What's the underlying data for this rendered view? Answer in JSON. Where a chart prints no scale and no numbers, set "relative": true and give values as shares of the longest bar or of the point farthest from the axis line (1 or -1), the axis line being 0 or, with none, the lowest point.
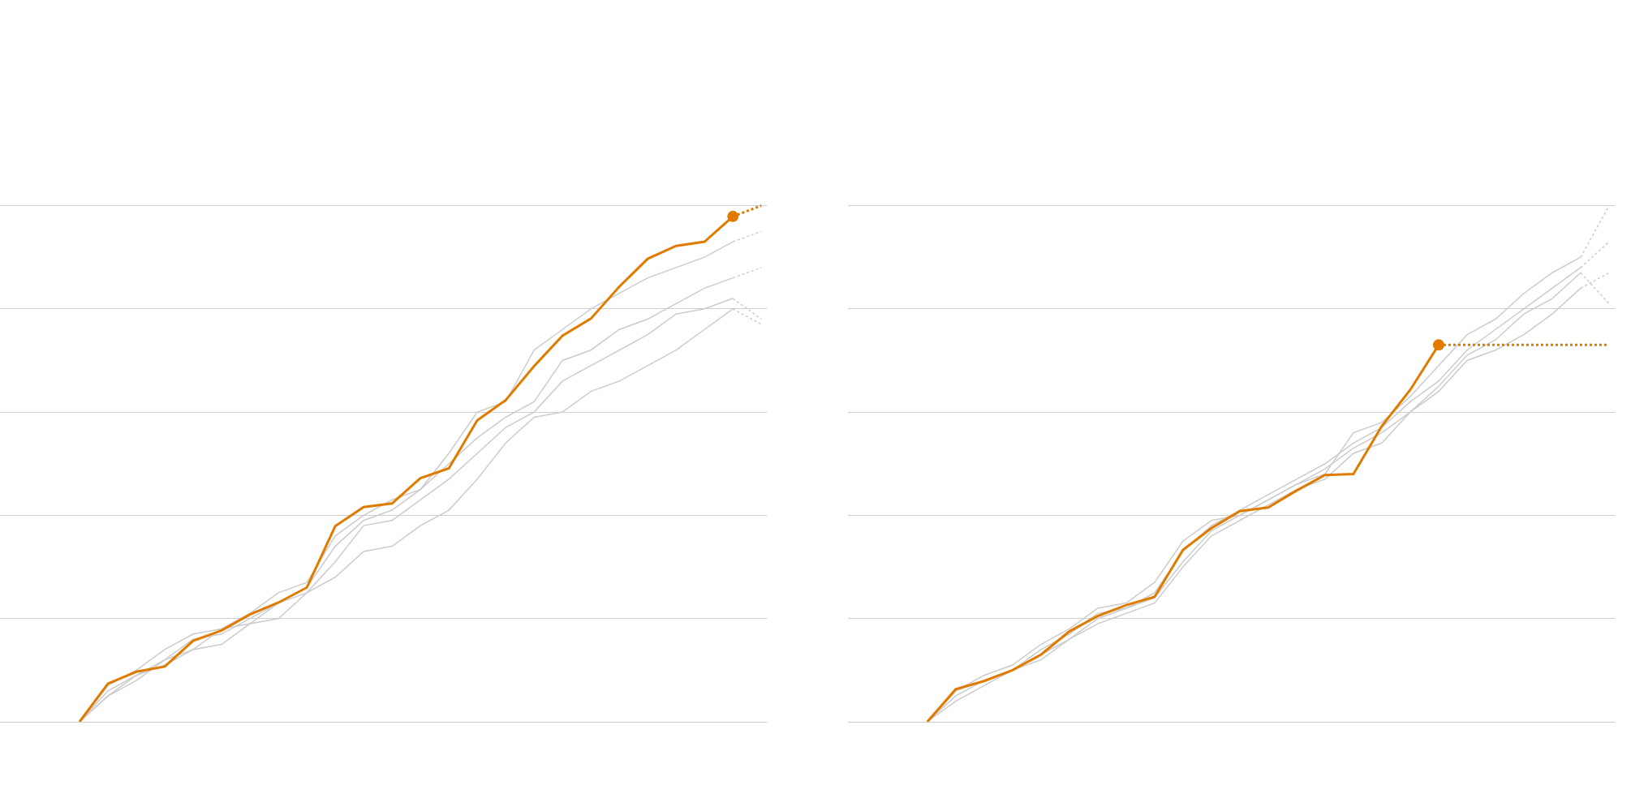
{
  "chart_data": [
    {
      "type": "line",
      "relative": true,
      "grid": "y",
      "legend": false,
      "categories": [
        null,
        null,
        null,
        null,
        null,
        null,
        null,
        null,
        null,
        null,
        null,
        null,
        null,
        null,
        null,
        null,
        null,
        null,
        null,
        null,
        null,
        null,
        null,
        null,
        null
      ],
      "series": [
        {
          "color": "#cccccc",
          "values": [
            0,
            0.07,
            0.1,
            0.14,
            0.17,
            0.18,
            0.21,
            0.25,
            0.27,
            0.36,
            0.4,
            0.43,
            0.45,
            0.52,
            0.6,
            0.62,
            0.72,
            0.76,
            0.8,
            0.83,
            0.86,
            0.88,
            0.9,
            0.93,
            null
          ]
        },
        {
          "color": "#cccccc",
          "values": [
            0,
            0.06,
            0.09,
            0.12,
            0.16,
            0.17,
            0.2,
            0.23,
            0.26,
            0.34,
            0.39,
            0.41,
            0.45,
            0.5,
            0.55,
            0.59,
            0.62,
            0.7,
            0.72,
            0.76,
            0.78,
            0.81,
            0.84,
            0.86,
            null
          ]
        },
        {
          "color": "#cccccc",
          "values": [
            0,
            0.05,
            0.08,
            0.12,
            0.14,
            0.18,
            0.19,
            0.23,
            0.25,
            0.31,
            0.38,
            0.39,
            0.43,
            0.47,
            0.52,
            0.57,
            0.6,
            0.66,
            0.69,
            0.72,
            0.75,
            0.79,
            0.8,
            0.82,
            null
          ]
        },
        {
          "color": "#cccccc",
          "values": [
            0,
            0.05,
            0.09,
            0.11,
            0.14,
            0.15,
            0.19,
            0.2,
            0.25,
            0.28,
            0.33,
            0.34,
            0.38,
            0.41,
            0.47,
            0.54,
            0.59,
            0.6,
            0.64,
            0.66,
            0.69,
            0.72,
            0.76,
            0.8,
            null
          ]
        },
        {
          "color": "#cccccc",
          "line_style": "dotted",
          "values": [
            null,
            null,
            null,
            null,
            null,
            null,
            null,
            null,
            null,
            null,
            null,
            null,
            null,
            null,
            null,
            null,
            null,
            null,
            null,
            null,
            null,
            null,
            null,
            0.93,
            0.95
          ]
        },
        {
          "color": "#cccccc",
          "line_style": "dotted",
          "values": [
            null,
            null,
            null,
            null,
            null,
            null,
            null,
            null,
            null,
            null,
            null,
            null,
            null,
            null,
            null,
            null,
            null,
            null,
            null,
            null,
            null,
            null,
            null,
            0.86,
            0.88
          ]
        },
        {
          "color": "#cccccc",
          "line_style": "dotted",
          "values": [
            null,
            null,
            null,
            null,
            null,
            null,
            null,
            null,
            null,
            null,
            null,
            null,
            null,
            null,
            null,
            null,
            null,
            null,
            null,
            null,
            null,
            null,
            null,
            0.82,
            0.78
          ]
        },
        {
          "color": "#cccccc",
          "line_style": "dotted",
          "values": [
            null,
            null,
            null,
            null,
            null,
            null,
            null,
            null,
            null,
            null,
            null,
            null,
            null,
            null,
            null,
            null,
            null,
            null,
            null,
            null,
            null,
            null,
            null,
            0.8,
            0.77
          ]
        },
        {
          "color": "#e07b00",
          "values": [
            0,
            0.074,
            0.097,
            0.107,
            0.157,
            0.177,
            0.208,
            0.231,
            0.26,
            0.379,
            0.416,
            0.423,
            0.472,
            0.491,
            0.584,
            0.623,
            0.689,
            0.748,
            0.781,
            0.843,
            0.897,
            0.922,
            0.93,
            0.979,
            null
          ]
        },
        {
          "color": "#e07b00",
          "line_style": "dotted",
          "values": [
            null,
            null,
            null,
            null,
            null,
            null,
            null,
            null,
            null,
            null,
            null,
            null,
            null,
            null,
            null,
            null,
            null,
            null,
            null,
            null,
            null,
            null,
            null,
            0.979,
            1
          ]
        },
        {
          "color": "#e07b00",
          "marker": "circle",
          "values": [
            null,
            null,
            null,
            null,
            null,
            null,
            null,
            null,
            null,
            null,
            null,
            null,
            null,
            null,
            null,
            null,
            null,
            null,
            null,
            null,
            null,
            null,
            null,
            0.979,
            null
          ]
        }
      ]
    },
    {
      "type": "line",
      "relative": true,
      "grid": "y",
      "legend": false,
      "categories": [
        null,
        null,
        null,
        null,
        null,
        null,
        null,
        null,
        null,
        null,
        null,
        null,
        null,
        null,
        null,
        null,
        null,
        null,
        null,
        null,
        null,
        null,
        null,
        null,
        null
      ],
      "series": [
        {
          "color": "#cccccc",
          "values": [
            0,
            0.06,
            0.09,
            0.11,
            0.15,
            0.18,
            0.22,
            0.23,
            0.27,
            0.35,
            0.39,
            0.4,
            0.43,
            0.46,
            0.48,
            0.56,
            0.58,
            0.63,
            0.69,
            0.75,
            0.78,
            0.83,
            0.87,
            0.9,
            null
          ]
        },
        {
          "color": "#cccccc",
          "values": [
            0,
            0.06,
            0.08,
            0.1,
            0.14,
            0.17,
            0.21,
            0.22,
            0.25,
            0.33,
            0.38,
            0.41,
            0.44,
            0.47,
            0.5,
            0.54,
            0.57,
            0.62,
            0.66,
            0.72,
            0.76,
            0.8,
            0.84,
            0.88,
            null
          ]
        },
        {
          "color": "#cccccc",
          "values": [
            0,
            0.05,
            0.08,
            0.1,
            0.13,
            0.16,
            0.2,
            0.22,
            0.24,
            0.31,
            0.37,
            0.4,
            0.43,
            0.46,
            0.49,
            0.53,
            0.56,
            0.6,
            0.65,
            0.71,
            0.74,
            0.79,
            0.82,
            0.87,
            null
          ]
        },
        {
          "color": "#cccccc",
          "values": [
            0,
            0.04,
            0.07,
            0.1,
            0.12,
            0.16,
            0.19,
            0.21,
            0.23,
            0.3,
            0.36,
            0.39,
            0.42,
            0.45,
            0.47,
            0.52,
            0.54,
            0.6,
            0.64,
            0.7,
            0.72,
            0.75,
            0.79,
            0.84,
            null
          ]
        },
        {
          "color": "#cccccc",
          "line_style": "dotted",
          "values": [
            null,
            null,
            null,
            null,
            null,
            null,
            null,
            null,
            null,
            null,
            null,
            null,
            null,
            null,
            null,
            null,
            null,
            null,
            null,
            null,
            null,
            null,
            null,
            0.9,
            1
          ]
        },
        {
          "color": "#cccccc",
          "line_style": "dotted",
          "values": [
            null,
            null,
            null,
            null,
            null,
            null,
            null,
            null,
            null,
            null,
            null,
            null,
            null,
            null,
            null,
            null,
            null,
            null,
            null,
            null,
            null,
            null,
            null,
            0.88,
            0.93
          ]
        },
        {
          "color": "#cccccc",
          "line_style": "dotted",
          "values": [
            null,
            null,
            null,
            null,
            null,
            null,
            null,
            null,
            null,
            null,
            null,
            null,
            null,
            null,
            null,
            null,
            null,
            null,
            null,
            null,
            null,
            null,
            null,
            0.87,
            0.81
          ]
        },
        {
          "color": "#cccccc",
          "line_style": "dotted",
          "values": [
            null,
            null,
            null,
            null,
            null,
            null,
            null,
            null,
            null,
            null,
            null,
            null,
            null,
            null,
            null,
            null,
            null,
            null,
            null,
            null,
            null,
            null,
            null,
            0.84,
            0.87
          ]
        },
        {
          "color": "#e07b00",
          "values": [
            0,
            0.063,
            0.079,
            0.1,
            0.13,
            0.175,
            0.205,
            0.226,
            0.242,
            0.333,
            0.375,
            0.408,
            0.415,
            0.448,
            0.478,
            0.48,
            0.573,
            0.643,
            0.73,
            null,
            null,
            null,
            null,
            null,
            null
          ]
        },
        {
          "color": "#e07b00",
          "line_style": "dotted",
          "values": [
            null,
            null,
            null,
            null,
            null,
            null,
            null,
            null,
            null,
            null,
            null,
            null,
            null,
            null,
            null,
            null,
            null,
            null,
            0.73,
            0.73,
            0.73,
            0.73,
            0.73,
            0.73,
            0.73
          ]
        },
        {
          "color": "#e07b00",
          "marker": "circle",
          "values": [
            null,
            null,
            null,
            null,
            null,
            null,
            null,
            null,
            null,
            null,
            null,
            null,
            null,
            null,
            null,
            null,
            null,
            null,
            0.73,
            null,
            null,
            null,
            null,
            null,
            null
          ]
        }
      ]
    }
  ]
}
